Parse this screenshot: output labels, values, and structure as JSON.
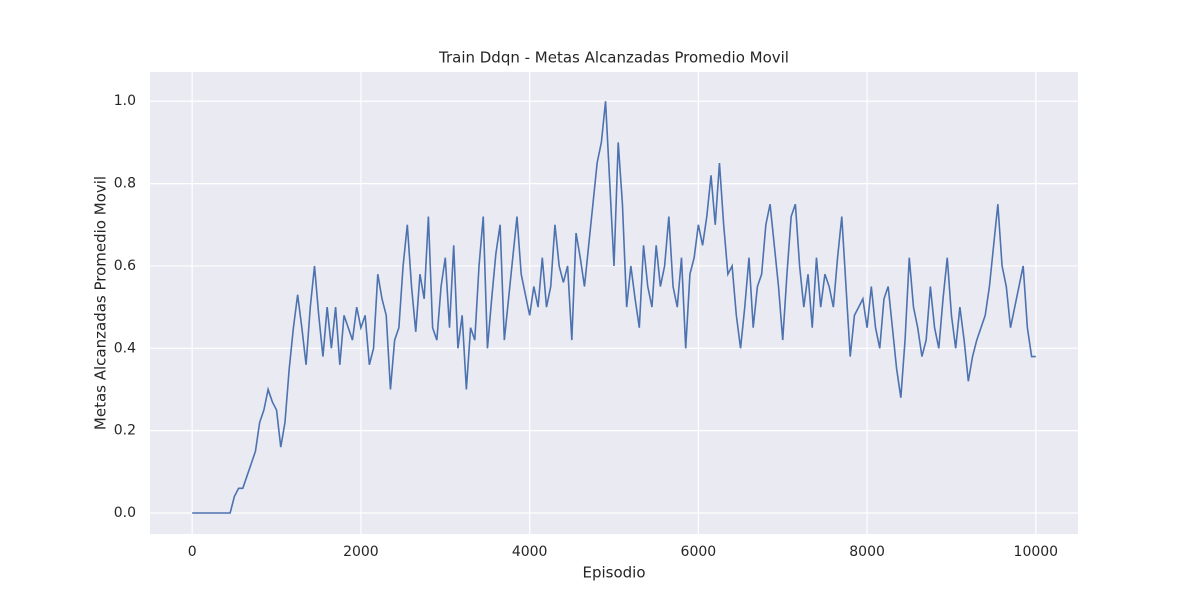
{
  "chart_data": {
    "type": "line",
    "title": "Train Ddqn - Metas Alcanzadas Promedio Movil",
    "x_label": "Episodio",
    "y_label": "Metas Alcanzadas Promedio Movil",
    "x": [
      0,
      50,
      100,
      150,
      200,
      250,
      300,
      350,
      400,
      450,
      500,
      550,
      600,
      650,
      700,
      750,
      800,
      850,
      900,
      950,
      1000,
      1050,
      1100,
      1150,
      1200,
      1250,
      1300,
      1350,
      1400,
      1450,
      1500,
      1550,
      1600,
      1650,
      1700,
      1750,
      1800,
      1850,
      1900,
      1950,
      2000,
      2050,
      2100,
      2150,
      2200,
      2250,
      2300,
      2350,
      2400,
      2450,
      2500,
      2550,
      2600,
      2650,
      2700,
      2750,
      2800,
      2850,
      2900,
      2950,
      3000,
      3050,
      3100,
      3150,
      3200,
      3250,
      3300,
      3350,
      3400,
      3450,
      3500,
      3550,
      3600,
      3650,
      3700,
      3750,
      3800,
      3850,
      3900,
      3950,
      4000,
      4050,
      4100,
      4150,
      4200,
      4250,
      4300,
      4350,
      4400,
      4450,
      4500,
      4550,
      4600,
      4650,
      4700,
      4750,
      4800,
      4850,
      4900,
      4950,
      5000,
      5050,
      5100,
      5150,
      5200,
      5250,
      5300,
      5350,
      5400,
      5450,
      5500,
      5550,
      5600,
      5650,
      5700,
      5750,
      5800,
      5850,
      5900,
      5950,
      6000,
      6050,
      6100,
      6150,
      6200,
      6250,
      6300,
      6350,
      6400,
      6450,
      6500,
      6550,
      6600,
      6650,
      6700,
      6750,
      6800,
      6850,
      6900,
      6950,
      7000,
      7050,
      7100,
      7150,
      7200,
      7250,
      7300,
      7350,
      7400,
      7450,
      7500,
      7550,
      7600,
      7650,
      7700,
      7750,
      7800,
      7850,
      7900,
      7950,
      8000,
      8050,
      8100,
      8150,
      8200,
      8250,
      8300,
      8350,
      8400,
      8450,
      8500,
      8550,
      8600,
      8650,
      8700,
      8750,
      8800,
      8850,
      8900,
      8950,
      9000,
      9050,
      9100,
      9150,
      9200,
      9250,
      9300,
      9350,
      9400,
      9450,
      9500,
      9550,
      9600,
      9650,
      9700,
      9750,
      9800,
      9850,
      9900,
      9950,
      10000
    ],
    "series": [
      {
        "color": "#4c72b0",
        "values": [
          0,
          0,
          0,
          0,
          0,
          0,
          0,
          0,
          0,
          0,
          0.04,
          0.06,
          0.06,
          0.09,
          0.12,
          0.15,
          0.22,
          0.25,
          0.3,
          0.27,
          0.25,
          0.16,
          0.22,
          0.35,
          0.45,
          0.53,
          0.45,
          0.36,
          0.5,
          0.6,
          0.48,
          0.38,
          0.5,
          0.4,
          0.5,
          0.36,
          0.48,
          0.45,
          0.42,
          0.5,
          0.45,
          0.48,
          0.36,
          0.4,
          0.58,
          0.52,
          0.48,
          0.3,
          0.42,
          0.45,
          0.6,
          0.7,
          0.55,
          0.44,
          0.58,
          0.52,
          0.72,
          0.45,
          0.42,
          0.55,
          0.62,
          0.45,
          0.65,
          0.4,
          0.48,
          0.3,
          0.45,
          0.42,
          0.6,
          0.72,
          0.4,
          0.52,
          0.63,
          0.7,
          0.42,
          0.52,
          0.62,
          0.72,
          0.58,
          0.53,
          0.48,
          0.55,
          0.5,
          0.62,
          0.5,
          0.55,
          0.7,
          0.6,
          0.56,
          0.6,
          0.42,
          0.68,
          0.62,
          0.55,
          0.65,
          0.75,
          0.85,
          0.9,
          1.0,
          0.8,
          0.6,
          0.9,
          0.75,
          0.5,
          0.6,
          0.52,
          0.45,
          0.65,
          0.55,
          0.5,
          0.65,
          0.55,
          0.6,
          0.72,
          0.55,
          0.5,
          0.62,
          0.4,
          0.58,
          0.62,
          0.7,
          0.65,
          0.72,
          0.82,
          0.7,
          0.85,
          0.7,
          0.58,
          0.6,
          0.48,
          0.4,
          0.5,
          0.62,
          0.45,
          0.55,
          0.58,
          0.7,
          0.75,
          0.65,
          0.55,
          0.42,
          0.58,
          0.72,
          0.75,
          0.6,
          0.5,
          0.58,
          0.45,
          0.62,
          0.5,
          0.58,
          0.55,
          0.5,
          0.62,
          0.72,
          0.55,
          0.38,
          0.48,
          0.5,
          0.52,
          0.45,
          0.55,
          0.45,
          0.4,
          0.52,
          0.55,
          0.45,
          0.35,
          0.28,
          0.42,
          0.62,
          0.5,
          0.45,
          0.38,
          0.42,
          0.55,
          0.45,
          0.4,
          0.52,
          0.62,
          0.48,
          0.4,
          0.5,
          0.42,
          0.32,
          0.38,
          0.42,
          0.45,
          0.48,
          0.55,
          0.65,
          0.75,
          0.6,
          0.55,
          0.45,
          0.5,
          0.55,
          0.6,
          0.45,
          0.38,
          0.38
        ]
      }
    ],
    "xlim": [
      -500,
      10500
    ],
    "ylim": [
      -0.051,
      1.071
    ],
    "xticks": [
      0,
      2000,
      4000,
      6000,
      8000,
      10000
    ],
    "yticks": [
      {
        "value": 0,
        "label": "0.0"
      },
      {
        "value": 0.2,
        "label": "0.2"
      },
      {
        "value": 0.4,
        "label": "0.4"
      },
      {
        "value": 0.6,
        "label": "0.6"
      },
      {
        "value": 0.8,
        "label": "0.8"
      },
      {
        "value": 1,
        "label": "1.0"
      }
    ],
    "grid": true
  }
}
